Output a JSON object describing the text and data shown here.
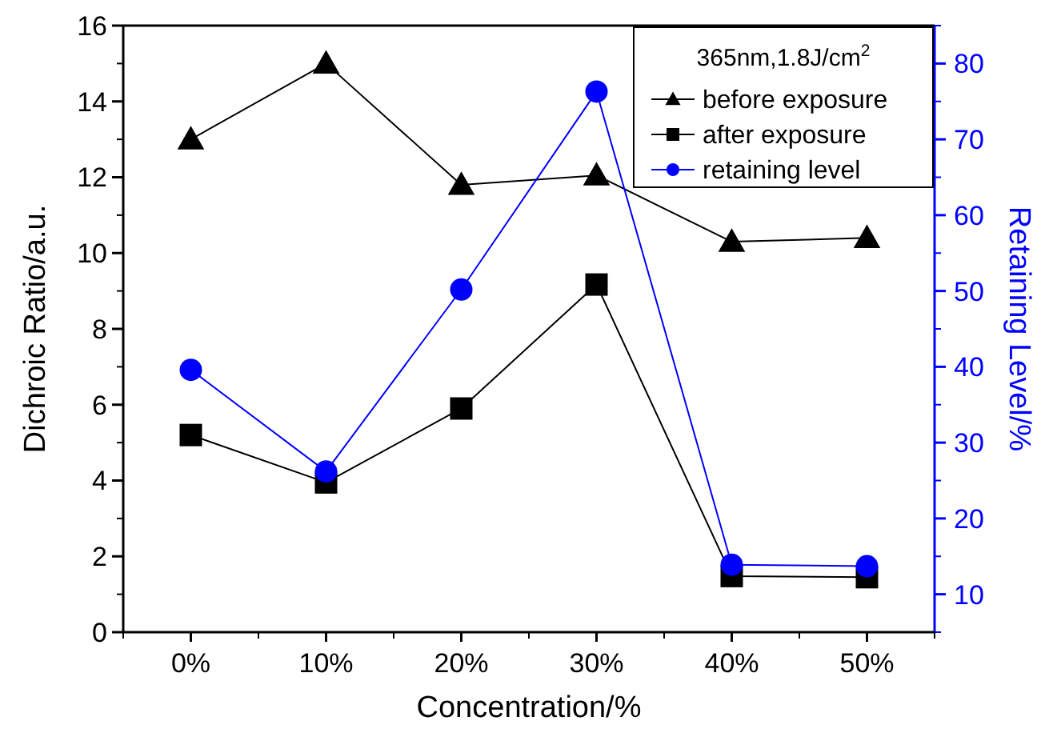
{
  "chart_data": {
    "type": "line",
    "xlabel": "Concentration/%",
    "ylabel": "Dichroic Ratio/a.u.",
    "y2label": "Retaining Level/%",
    "legend_title": "365nm,1.8J/cm$^{2}$",
    "categories": [
      "0%",
      "10%",
      "20%",
      "30%",
      "40%",
      "50%"
    ],
    "series": [
      {
        "name": "before exposure",
        "color": "#000000",
        "marker": "triangle",
        "values": [
          13,
          15,
          11.8,
          12.05,
          10.3,
          10.4
        ]
      },
      {
        "name": "after exposure",
        "color": "#000000",
        "marker": "square",
        "values": [
          5.2,
          3.95,
          5.9,
          9.17,
          1.48,
          1.45
        ]
      },
      {
        "name": "retaining level",
        "color": "#0000ff",
        "marker": "circle",
        "axis": "y2",
        "values": [
          39.6,
          26.2,
          50.2,
          76.3,
          13.9,
          13.7
        ]
      }
    ],
    "ylim": [
      0,
      16
    ],
    "yticks": [
      0,
      2,
      4,
      6,
      8,
      10,
      12,
      14,
      16
    ],
    "y2lim": [
      5,
      85
    ],
    "y2ticks": [
      10,
      20,
      30,
      40,
      50,
      60,
      70,
      80
    ],
    "grid": false,
    "legend": "top right",
    "line_style": "solid"
  }
}
